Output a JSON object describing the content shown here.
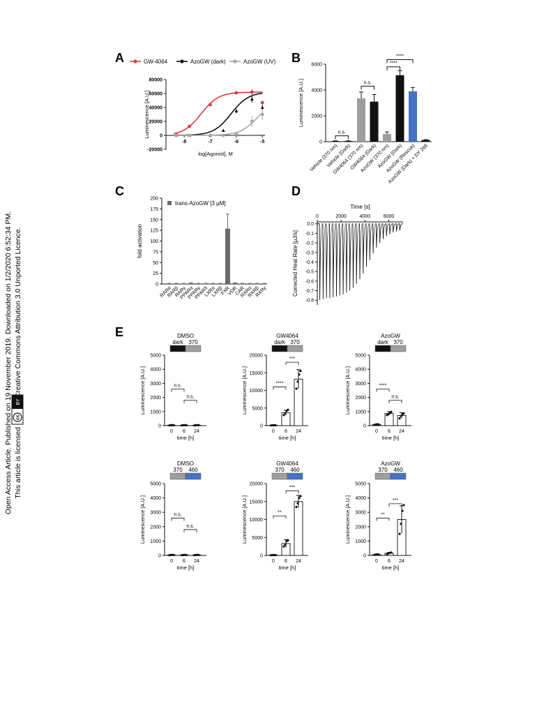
{
  "sidebar": {
    "line1": "Open Access Article. Published on 19 November 2019. Downloaded on 1/2/2020 6:52:34 PM.",
    "line2": "This article is licensed under a Creative Commons Attribution 3.0 Unported Licence.",
    "cc_badge": "cc",
    "by_badge": "BY"
  },
  "panels": {
    "A": {
      "label": "A",
      "legend": [
        "GW-4064",
        "AzoGW (dark)",
        "AzoGW (UV)"
      ],
      "colors": [
        "#e03a3e",
        "#111111",
        "#a6a6a6"
      ],
      "ylabel": "Luminescence [A.U.]",
      "xlabel": "log[Agonist], M",
      "yticks": [
        "-20000",
        "0",
        "20000",
        "40000",
        "60000",
        "80000"
      ],
      "xticks": [
        "-8",
        "-7",
        "-6",
        "-5"
      ]
    },
    "B": {
      "label": "B",
      "ylabel": "Luminescence [A.U.]",
      "yticks": [
        "0",
        "2000",
        "4000",
        "6000"
      ],
      "sig": [
        "n.s.",
        "n.s.",
        "****",
        "****"
      ]
    },
    "C": {
      "label": "C",
      "ylabel": "fold activation",
      "legend": "trans-AzoGW [3 µM]",
      "yticks": [
        "0",
        "25",
        "50",
        "75",
        "100",
        "125",
        "150",
        "175",
        "200"
      ]
    },
    "D": {
      "label": "D",
      "title": "Time [s]",
      "ylabel": "Corrected Heat Rate [µJ/s]",
      "xticks": [
        "0",
        "2000",
        "4000",
        "6000"
      ],
      "yticks": [
        "0.0",
        "-0.1",
        "-0.2",
        "-0.3",
        "-0.4",
        "-0.5",
        "-0.6",
        "-0.7",
        "-0.8"
      ]
    },
    "E": {
      "label": "E",
      "xlabel": "time [h]",
      "ylabel": "Luminescence [A.U.]",
      "xticks": [
        "0",
        "6",
        "24"
      ]
    }
  },
  "chart_data": [
    {
      "type": "scatter",
      "panel": "A",
      "xlabel": "log[Agonist], M",
      "ylabel": "Luminescence [A.U.]",
      "xlim": [
        -8.7,
        -4.9
      ],
      "ylim": [
        -20000,
        80000
      ],
      "series": [
        {
          "name": "GW-4064",
          "x": [
            -8.3,
            -7.8,
            -7.0,
            -6.0,
            -5.4,
            -5.0
          ],
          "y": [
            1000,
            13000,
            44000,
            61000,
            62000,
            47000
          ],
          "err": [
            0,
            0,
            0,
            0,
            4000,
            0
          ],
          "ec50": -7.35,
          "top": 62000,
          "bottom": 0
        },
        {
          "name": "AzoGW (dark)",
          "x": [
            -8.3,
            -7.8,
            -7.0,
            -6.5,
            -6.0,
            -5.4,
            -5.0
          ],
          "y": [
            0,
            0,
            0,
            7000,
            35000,
            52000,
            40000
          ],
          "err": [
            0,
            0,
            0,
            0,
            3000,
            5000,
            4000
          ],
          "ec50": -6.2,
          "top": 62000,
          "bottom": 0
        },
        {
          "name": "AzoGW (UV)",
          "x": [
            -8.3,
            -7.8,
            -7.0,
            -6.5,
            -6.0,
            -5.4,
            -5.0
          ],
          "y": [
            0,
            0,
            0,
            0,
            2000,
            20000,
            30000
          ],
          "err": [
            0,
            0,
            0,
            0,
            0,
            8000,
            8000
          ],
          "ec50": -5.2,
          "top": 50000,
          "bottom": 0
        }
      ]
    },
    {
      "type": "bar",
      "panel": "B",
      "ylabel": "Luminescence [A.U.]",
      "ylim": [
        0,
        6000
      ],
      "categories": [
        "Vehicle (370 nm)",
        "Vehicle (Dark)",
        "GW4064 (370 nm)",
        "GW4064 (Dark)",
        "AzoGW (370 nm)",
        "AzoGW (Dark)",
        "AzoGW (Rescue)",
        "AzoGW (Dark) + DY 268"
      ],
      "values": [
        50,
        50,
        3350,
        3100,
        600,
        5150,
        3900,
        130
      ],
      "errors": [
        20,
        20,
        500,
        550,
        150,
        350,
        300,
        30
      ],
      "colors": [
        "#111111",
        "#111111",
        "#9e9e9e",
        "#111111",
        "#9e9e9e",
        "#111111",
        "#4472c4",
        "#111111"
      ]
    },
    {
      "type": "bar",
      "panel": "C",
      "ylabel": "fold activation",
      "ylim": [
        0,
        200
      ],
      "series_name": "trans-AzoGW [3 µM]",
      "categories": [
        "RARα",
        "RARβ",
        "RARγ",
        "PPARα",
        "PPARγ",
        "PPARδ",
        "LXRα",
        "LXRβ",
        "FXR",
        "VDR",
        "CAR",
        "RXRα",
        "RXRβ",
        "RXRγ"
      ],
      "values": [
        1,
        1,
        1,
        2,
        1,
        1,
        1,
        1,
        129,
        2,
        1,
        1,
        1,
        1
      ],
      "errors": [
        0.5,
        0.5,
        0.5,
        1,
        0.5,
        0.5,
        0.5,
        0.5,
        34,
        1,
        0.5,
        0.5,
        0.5,
        0.5
      ]
    },
    {
      "type": "line",
      "panel": "D",
      "xlabel": "Time [s]",
      "ylabel": "Corrected Heat Rate [µJ/s]",
      "xlim": [
        0,
        7200
      ],
      "ylim": [
        -0.85,
        0.02
      ],
      "injection_times": [
        180,
        460,
        740,
        1020,
        1300,
        1580,
        1860,
        2140,
        2420,
        2700,
        2980,
        3260,
        3540,
        3820,
        4100,
        4380,
        4660,
        4940,
        5220,
        5500,
        5780,
        6060,
        6340,
        6620,
        6900
      ],
      "peak_values": [
        -0.8,
        -0.79,
        -0.78,
        -0.78,
        -0.77,
        -0.76,
        -0.75,
        -0.74,
        -0.72,
        -0.7,
        -0.67,
        -0.63,
        -0.58,
        -0.52,
        -0.45,
        -0.38,
        -0.31,
        -0.25,
        -0.2,
        -0.16,
        -0.13,
        -0.11,
        -0.09,
        -0.08,
        -0.07
      ]
    },
    {
      "type": "bar",
      "panel": "E",
      "subplots": [
        {
          "title": "DMSO",
          "header": [
            "dark",
            "370"
          ],
          "header_colors": [
            "#111111",
            "#9e9e9e"
          ],
          "ylim": [
            0,
            5000
          ],
          "yticks": [
            "0",
            "1000",
            "2000",
            "3000",
            "4000",
            "5000"
          ],
          "categories": [
            "0",
            "6",
            "24"
          ],
          "values": [
            30,
            30,
            30
          ],
          "errors": [
            10,
            10,
            10
          ],
          "points": [
            [
              20,
              30,
              40,
              30
            ],
            [
              20,
              30,
              40,
              30
            ],
            [
              20,
              30,
              40,
              30
            ]
          ],
          "sig": [
            {
              "label": "n.s.",
              "from": 0,
              "to": 1,
              "y": 2600
            },
            {
              "label": "n.s.",
              "from": 1,
              "to": 2,
              "y": 1800
            }
          ]
        },
        {
          "title": "GW4064",
          "header": [
            "dark",
            "370"
          ],
          "header_colors": [
            "#111111",
            "#9e9e9e"
          ],
          "ylim": [
            0,
            20000
          ],
          "yticks": [
            "0",
            "5000",
            "10000",
            "15000",
            "20000"
          ],
          "categories": [
            "0",
            "6",
            "24"
          ],
          "values": [
            100,
            3700,
            13200
          ],
          "errors": [
            50,
            700,
            2700
          ],
          "points": [
            [
              80,
              100,
              120,
              100
            ],
            [
              3000,
              3500,
              4200,
              4500
            ],
            [
              10500,
              12500,
              14500,
              15500
            ]
          ],
          "sig": [
            {
              "label": "****",
              "from": 0,
              "to": 1,
              "y": 11000
            },
            {
              "label": "***",
              "from": 1,
              "to": 2,
              "y": 18000
            }
          ]
        },
        {
          "title": "AzoGW",
          "header": [
            "dark",
            "370"
          ],
          "header_colors": [
            "#111111",
            "#9e9e9e"
          ],
          "ylim": [
            0,
            5000
          ],
          "yticks": [
            "0",
            "1000",
            "2000",
            "3000",
            "4000",
            "5000"
          ],
          "categories": [
            "0",
            "6",
            "24"
          ],
          "values": [
            80,
            860,
            720
          ],
          "errors": [
            20,
            130,
            200
          ],
          "points": [
            [
              60,
              80,
              100,
              80
            ],
            [
              750,
              820,
              900,
              980
            ],
            [
              520,
              680,
              800,
              870
            ]
          ],
          "sig": [
            {
              "label": "****",
              "from": 0,
              "to": 1,
              "y": 2600
            },
            {
              "label": "n.s.",
              "from": 1,
              "to": 2,
              "y": 1800
            }
          ]
        },
        {
          "title": "DMSO",
          "header": [
            "370",
            "460"
          ],
          "header_colors": [
            "#9e9e9e",
            "#4472c4"
          ],
          "ylim": [
            0,
            5000
          ],
          "yticks": [
            "0",
            "1000",
            "2000",
            "3000",
            "4000",
            "5000"
          ],
          "categories": [
            "0",
            "6",
            "24"
          ],
          "values": [
            30,
            30,
            30
          ],
          "errors": [
            10,
            10,
            10
          ],
          "points": [
            [
              20,
              30,
              40,
              30
            ],
            [
              20,
              30,
              40,
              30
            ],
            [
              20,
              30,
              40,
              30
            ]
          ],
          "sig": [
            {
              "label": "n.s.",
              "from": 0,
              "to": 1,
              "y": 2600
            },
            {
              "label": "n.s.",
              "from": 1,
              "to": 2,
              "y": 1800
            }
          ]
        },
        {
          "title": "GW4064",
          "header": [
            "370",
            "460"
          ],
          "header_colors": [
            "#9e9e9e",
            "#4472c4"
          ],
          "ylim": [
            0,
            20000
          ],
          "yticks": [
            "0",
            "5000",
            "10000",
            "15000",
            "20000"
          ],
          "categories": [
            "0",
            "6",
            "24"
          ],
          "values": [
            100,
            3300,
            15000
          ],
          "errors": [
            50,
            1100,
            1700
          ],
          "points": [
            [
              80,
              100,
              120,
              100
            ],
            [
              2500,
              3000,
              4000,
              4200
            ],
            [
              13500,
              14500,
              16000,
              16500
            ]
          ],
          "sig": [
            {
              "label": "**",
              "from": 0,
              "to": 1,
              "y": 11000
            },
            {
              "label": "***",
              "from": 1,
              "to": 2,
              "y": 18000
            }
          ]
        },
        {
          "title": "AzoGW",
          "header": [
            "370",
            "460"
          ],
          "header_colors": [
            "#9e9e9e",
            "#4472c4"
          ],
          "ylim": [
            0,
            5000
          ],
          "yticks": [
            "0",
            "1000",
            "2000",
            "3000",
            "4000",
            "5000"
          ],
          "categories": [
            "0",
            "6",
            "24"
          ],
          "values": [
            60,
            150,
            2500
          ],
          "errors": [
            20,
            60,
            950
          ],
          "points": [
            [
              40,
              60,
              80,
              60
            ],
            [
              100,
              140,
              180,
              200
            ],
            [
              1500,
              2200,
              3100,
              3500
            ]
          ],
          "sig": [
            {
              "label": "**",
              "from": 0,
              "to": 1,
              "y": 2600
            },
            {
              "label": "***",
              "from": 1,
              "to": 2,
              "y": 3600
            }
          ]
        }
      ]
    }
  ]
}
